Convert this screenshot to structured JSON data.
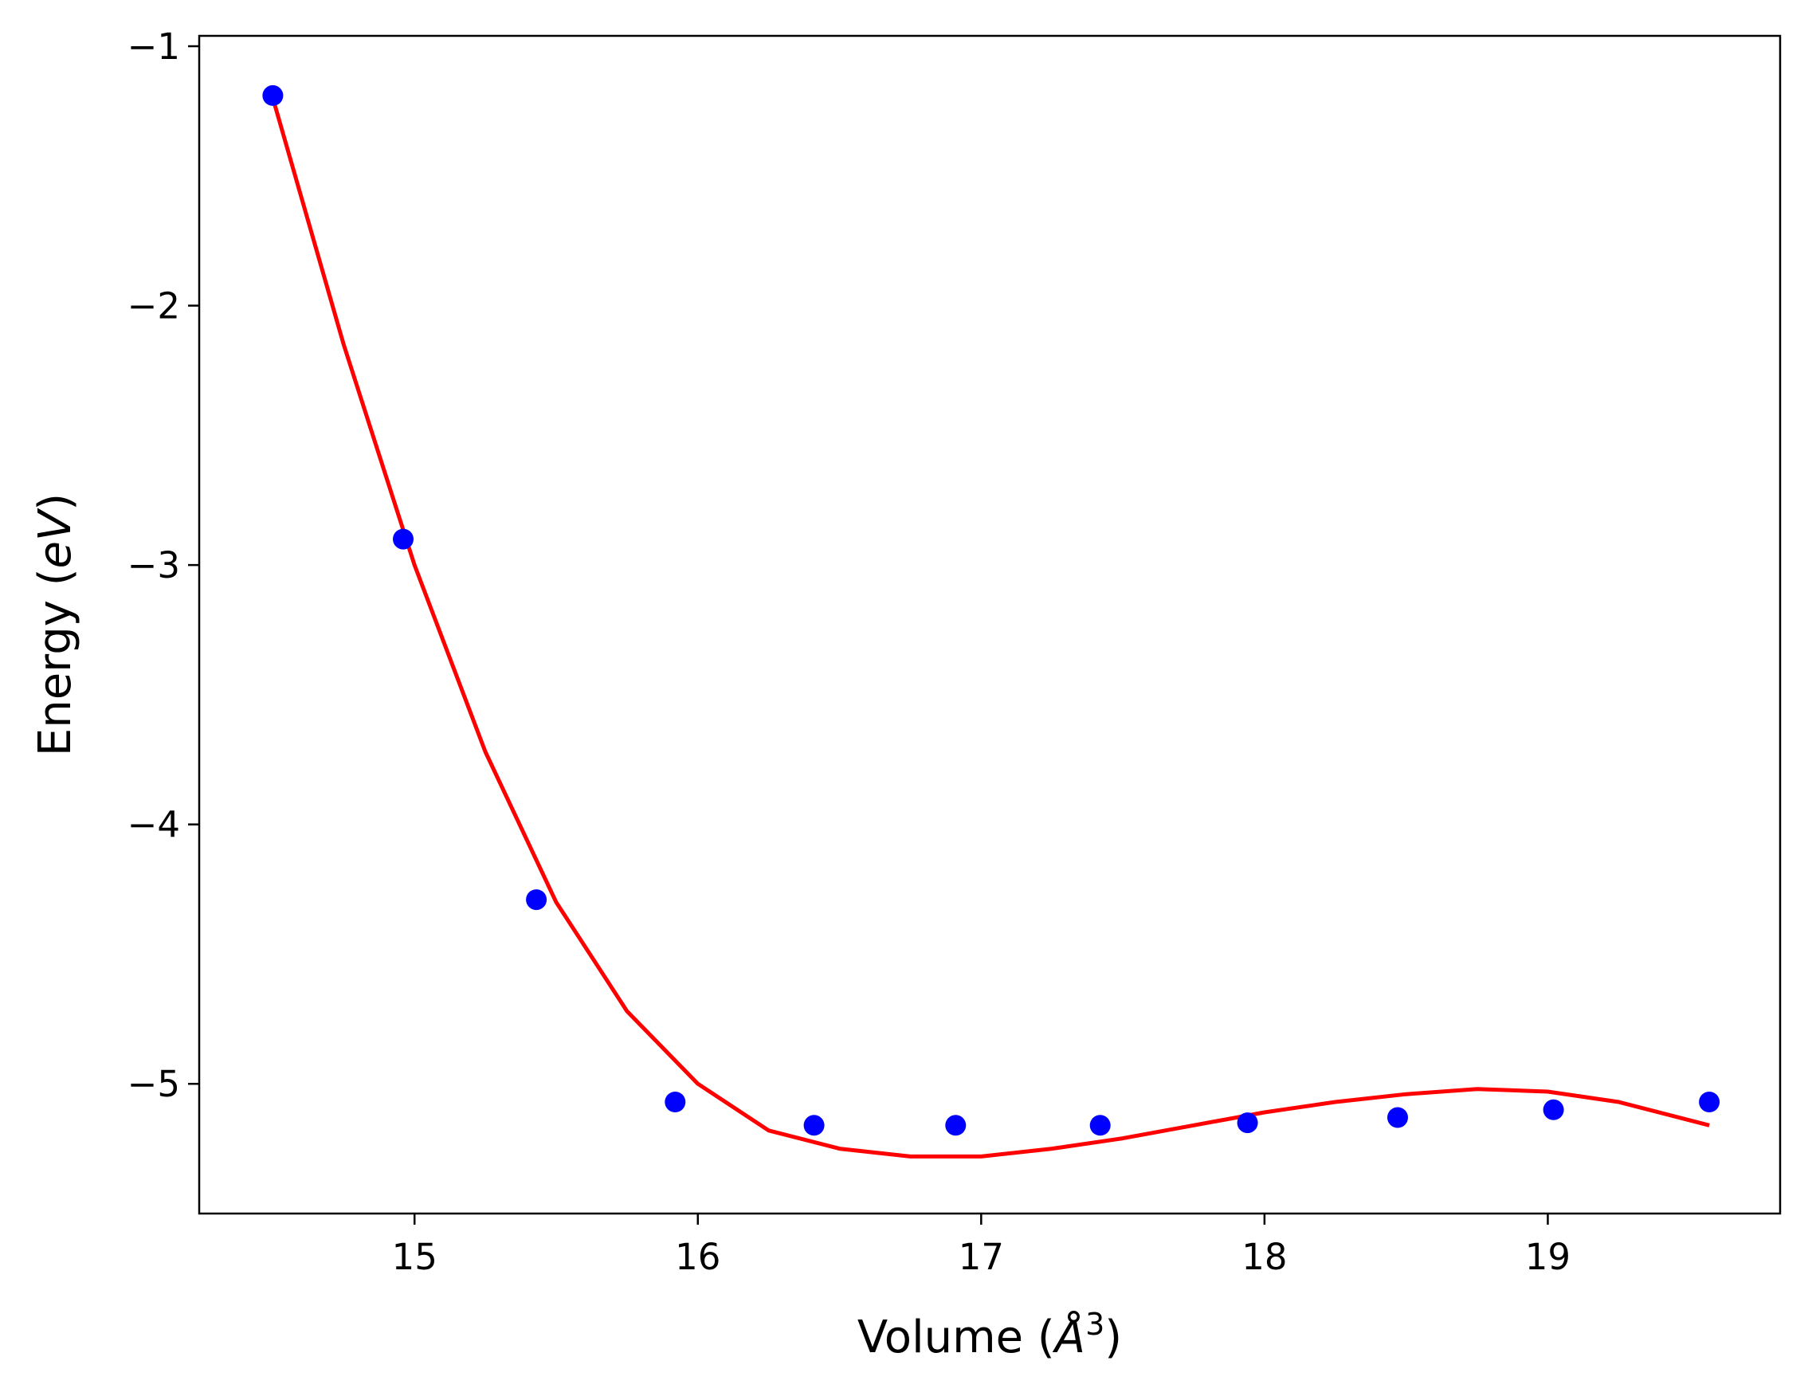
{
  "chart_data": {
    "type": "scatter",
    "title": "",
    "xlabel": {
      "prefix": "Volume (",
      "unit": "Å",
      "exp": "3",
      "suffix": ")"
    },
    "ylabel": {
      "prefix": "Energy (",
      "unit": "eV",
      "suffix": ")"
    },
    "xlim": [
      14.24,
      19.82
    ],
    "ylim": [
      -5.5,
      -0.96
    ],
    "xticks": [
      15,
      16,
      17,
      18,
      19
    ],
    "yticks": [
      -1,
      -2,
      -3,
      -4,
      -5
    ],
    "yticklabels": [
      "−1",
      "−2",
      "−3",
      "−4",
      "−5"
    ],
    "grid": false,
    "series": [
      {
        "kind": "points",
        "color": "#0000ff",
        "x": [
          14.5,
          14.96,
          15.43,
          15.92,
          16.41,
          16.91,
          17.42,
          17.94,
          18.47,
          19.02,
          19.57
        ],
        "y": [
          -1.19,
          -2.9,
          -4.29,
          -5.07,
          -5.16,
          -5.16,
          -5.16,
          -5.15,
          -5.13,
          -5.1,
          -5.07
        ]
      },
      {
        "kind": "fit-line",
        "color": "#ff0000",
        "x": [
          14.5,
          14.75,
          15.0,
          15.25,
          15.5,
          15.75,
          16.0,
          16.25,
          16.5,
          16.75,
          17.0,
          17.25,
          17.5,
          17.75,
          18.0,
          18.25,
          18.5,
          18.75,
          19.0,
          19.25,
          19.57
        ],
        "y": [
          -1.2,
          -2.15,
          -3.0,
          -3.72,
          -4.3,
          -4.72,
          -5.0,
          -5.18,
          -5.25,
          -5.28,
          -5.28,
          -5.25,
          -5.21,
          -5.16,
          -5.11,
          -5.07,
          -5.04,
          -5.02,
          -5.03,
          -5.07,
          -5.16
        ]
      }
    ]
  }
}
